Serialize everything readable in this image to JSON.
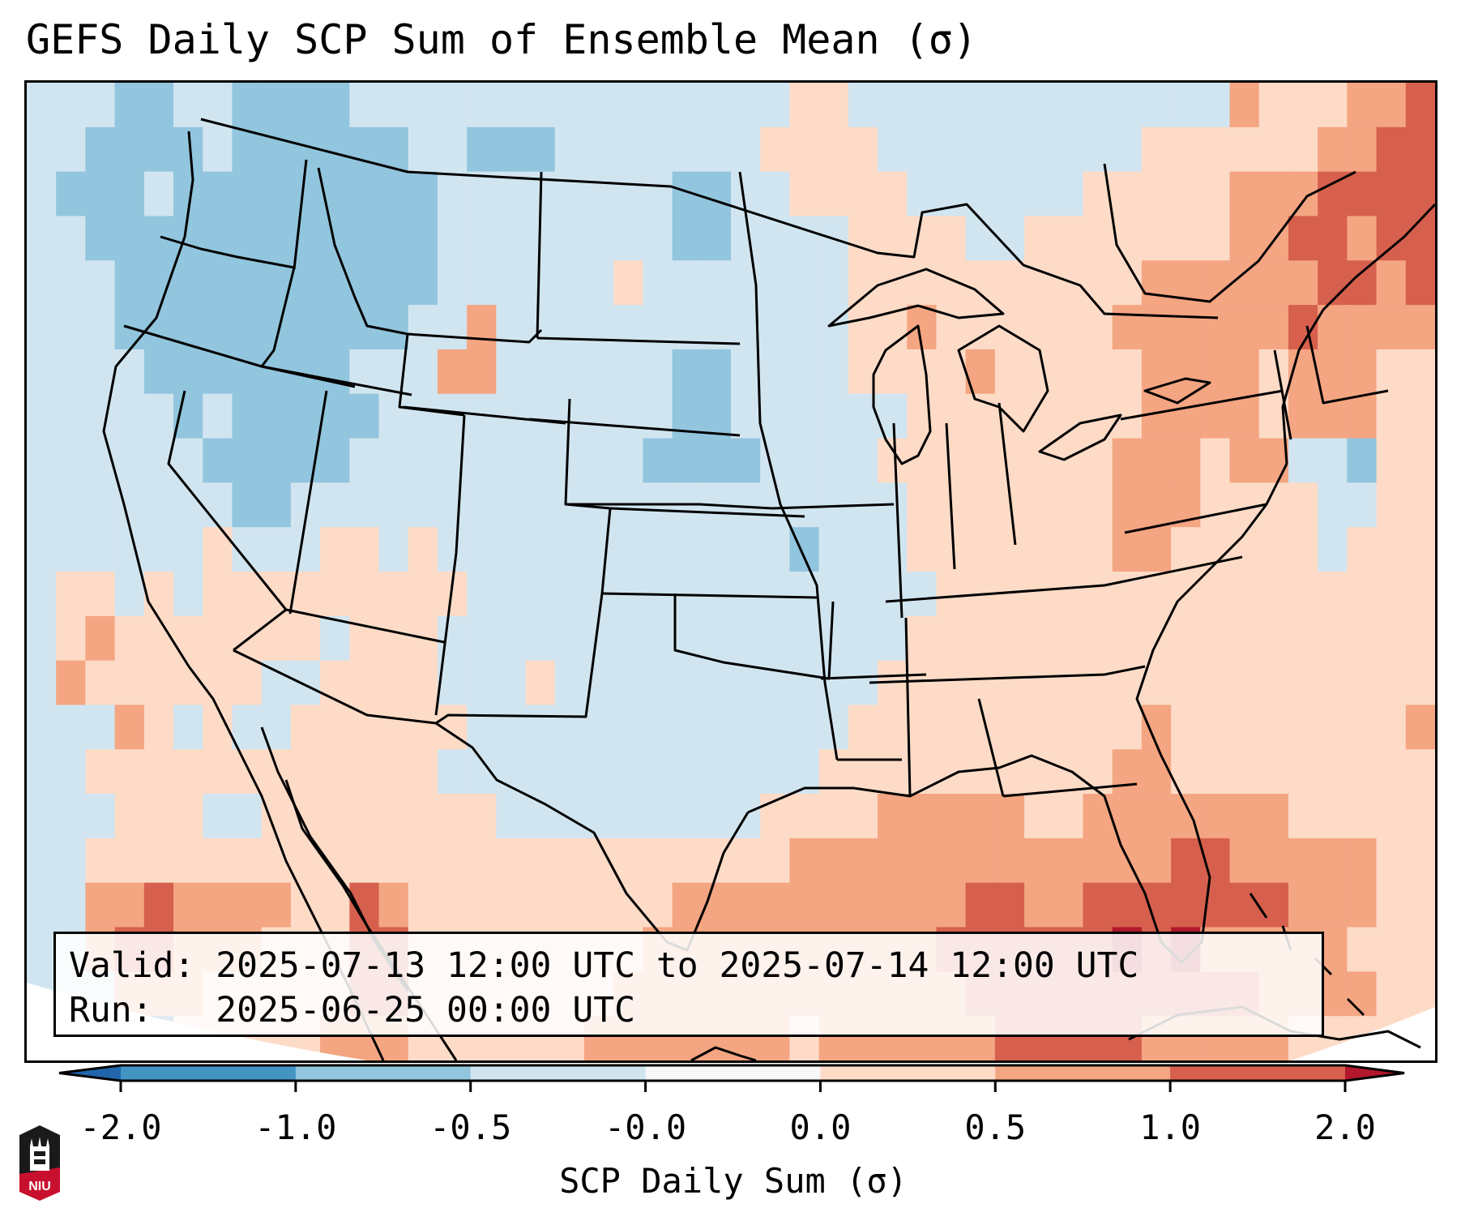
{
  "chart_data": {
    "type": "heatmap",
    "title": "GEFS Daily SCP Sum of Ensemble Mean (σ)",
    "colorbar": {
      "label": "SCP Daily Sum (σ)",
      "ticks": [
        "-2.0",
        "-1.0",
        "-0.5",
        "-0.0",
        "0.0",
        "0.5",
        "1.0",
        "2.0"
      ],
      "levels": [
        -2.0,
        -1.0,
        -0.5,
        -0.0,
        0.0,
        0.5,
        1.0,
        2.0
      ],
      "extend": "both",
      "colors": [
        "#2166ac",
        "#4393c3",
        "#92c5de",
        "#d1e5f0",
        "#f7f7f7",
        "#fddbc7",
        "#f4a582",
        "#d6604d",
        "#b2182b"
      ]
    },
    "region": "Contiguous United States, northern Mexico, Gulf of Mexico, western Atlantic",
    "field_summary": {
      "northwest_interior": "-1.0 to -0.5",
      "central_plains_and_west": "-0.5 to 0",
      "southwest_and_mexico_scattered": "0 to 0.5, locally 1.0 to 2.0",
      "great_lakes_northeast": "0 to 1.0",
      "gulf_of_mexico_florida_bahamas": "0.5 to >2.0",
      "western_atlantic_band": "0 to 1.0"
    },
    "grid_legend": "0=<-2,1=-2..-1,2=-1..-0.5,3=-0.5..0,4=~0,5=0..0.5,6=0.5..1,7=1..2,8=>2",
    "grid": [
      "333223322223333333333333335533333333333336555667",
      "332222322222233222333333355553333333335555556677",
      "322232222222223333333322335555333333555556667777",
      "332222222222223333333322333355553355555556677677",
      "333222222222223333335333333355555555556666667767",
      "333222222222233633333333333355655555566666676666",
      "333322222223336633333322333355556555556666566655",
      "333332322222333333333322333333555555556666566655",
      "333333222223333333333222233335555555566656633255",
      "333333322333333333333333333333555555566655553355",
      "333333533355353333333333332333555555566555553555",
      "355353555555555333333333333333355555555555555555",
      "356555555535553333333333333333555555555555555555",
      "365555553355553335333333333335555555555555555555",
      "333653533555555333333333333355555555556555555556",
      "335555555555553333333333333555555555566555555555",
      "333555335555555533333333355556666655666666655555",
      "335555555555555555555555556666666666666776666655",
      "336676666557655555555566666666667766777777766655",
      "336776665557755555555666666666677777787866666555",
      "333666555557755555556666666666667777777777666655",
      "000005555566655555566666665666666777776666655555"
    ]
  },
  "info_box": {
    "valid_line": "Valid: 2025-07-13 12:00 UTC to 2025-07-14 12:00 UTC",
    "run_line": "Run:   2025-06-25 00:00 UTC"
  },
  "logo": {
    "text": "NIU",
    "colors": {
      "top": "#1a1a1a",
      "bottom": "#c8102e"
    }
  },
  "style": {
    "background_ocean": "#d1e5f0",
    "border_color": "#000000"
  }
}
